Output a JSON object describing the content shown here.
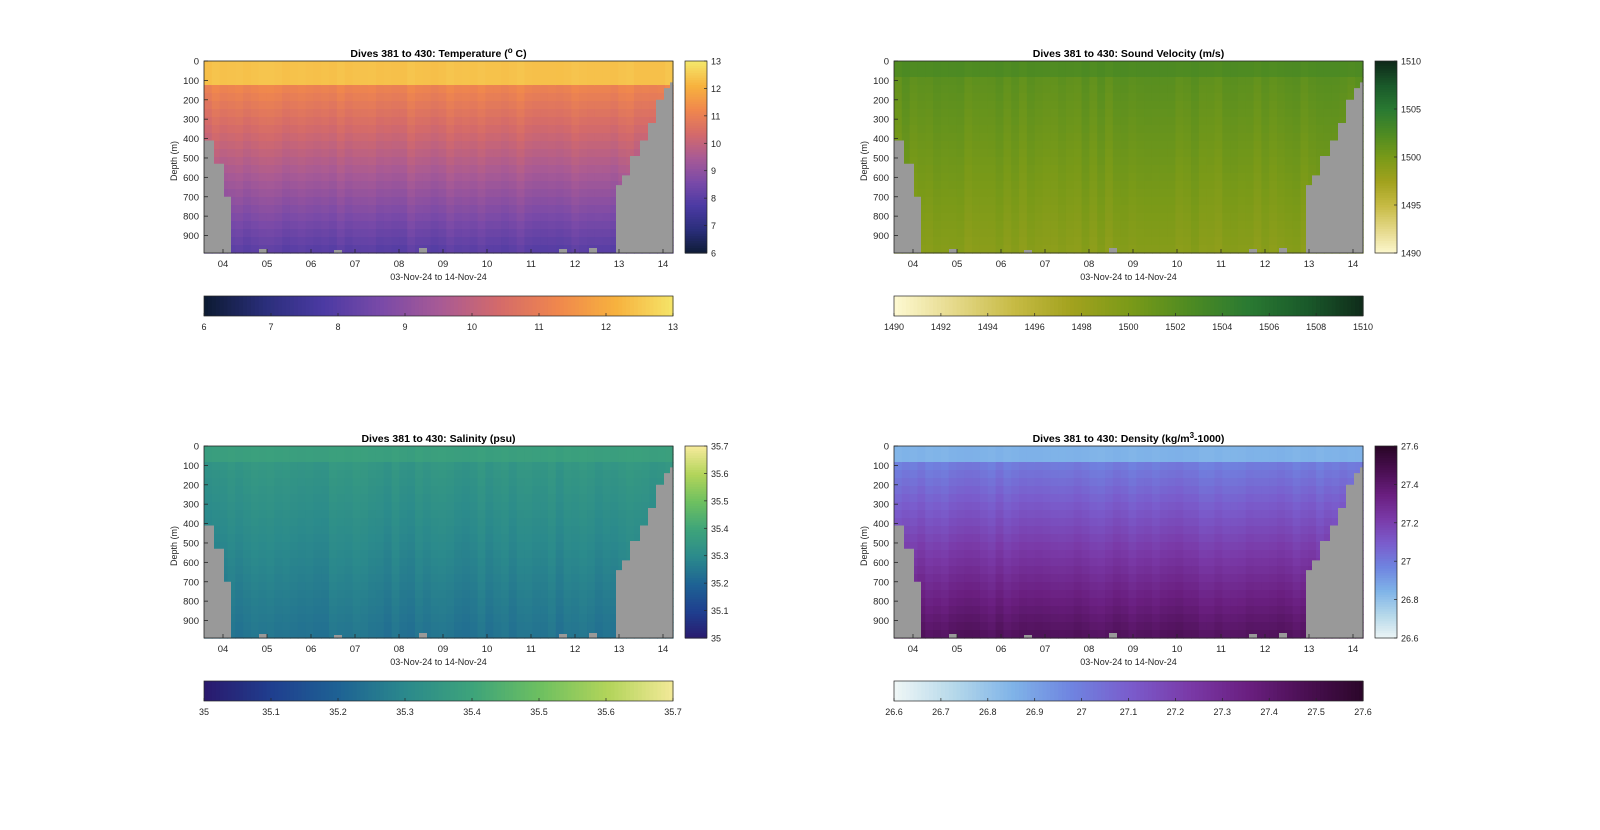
{
  "chart_data": [
    {
      "type": "heatmap",
      "title": "Dives 381 to 430: Temperature (°C)",
      "title_parts": {
        "pre": "Dives 381 to 430: Temperature (",
        "sup": "o",
        "post": " C)"
      },
      "xlabel": "03-Nov-24 to 14-Nov-24",
      "ylabel": "Depth (m)",
      "x_ticks": [
        "04",
        "05",
        "06",
        "07",
        "08",
        "09",
        "10",
        "11",
        "12",
        "13",
        "14"
      ],
      "y_ticks": [
        "0",
        "100",
        "200",
        "300",
        "400",
        "500",
        "600",
        "700",
        "800",
        "900"
      ],
      "ylim": [
        0,
        990
      ],
      "colorbar_right_ticks": [
        "6",
        "7",
        "8",
        "9",
        "10",
        "11",
        "12",
        "13"
      ],
      "colorbar_bottom_ticks": [
        "6",
        "7",
        "8",
        "9",
        "10",
        "11",
        "12",
        "13"
      ],
      "clim": [
        6,
        13
      ],
      "colormap": [
        "#0d1b34",
        "#2a2e7a",
        "#4b3aa3",
        "#7a4aa8",
        "#a85a95",
        "#d46a6a",
        "#f0874d",
        "#f7b23e",
        "#f5e66a"
      ],
      "surface_value": 12.4,
      "bottom_value": 8.0,
      "mixed_layer_m": 110
    },
    {
      "type": "heatmap",
      "title": "Dives 381 to 430: Sound Velocity (m/s)",
      "xlabel": "03-Nov-24 to 14-Nov-24",
      "ylabel": "Depth (m)",
      "x_ticks": [
        "04",
        "05",
        "06",
        "07",
        "08",
        "09",
        "10",
        "11",
        "12",
        "13",
        "14"
      ],
      "y_ticks": [
        "0",
        "100",
        "200",
        "300",
        "400",
        "500",
        "600",
        "700",
        "800",
        "900"
      ],
      "ylim": [
        0,
        990
      ],
      "colorbar_right_ticks": [
        "1490",
        "1495",
        "1500",
        "1505",
        "1510"
      ],
      "colorbar_bottom_ticks": [
        "1490",
        "1492",
        "1494",
        "1496",
        "1498",
        "1500",
        "1502",
        "1504",
        "1506",
        "1508",
        "1510"
      ],
      "clim": [
        1490,
        1510
      ],
      "colormap": [
        "#fdf8d0",
        "#e5d98a",
        "#c7bb45",
        "#a2a21e",
        "#7a9a18",
        "#4e8b22",
        "#2a7a32",
        "#1a5a2a",
        "#0f2a1a"
      ],
      "surface_value": 1502.5,
      "bottom_value": 1499.0,
      "mixed_layer_m": 100
    },
    {
      "type": "heatmap",
      "title": "Dives 381 to 430: Salinity (psu)",
      "xlabel": "03-Nov-24 to 14-Nov-24",
      "ylabel": "Depth (m)",
      "x_ticks": [
        "04",
        "05",
        "06",
        "07",
        "08",
        "09",
        "10",
        "11",
        "12",
        "13",
        "14"
      ],
      "y_ticks": [
        "0",
        "100",
        "200",
        "300",
        "400",
        "500",
        "600",
        "700",
        "800",
        "900"
      ],
      "ylim": [
        0,
        990
      ],
      "colorbar_right_ticks": [
        "35",
        "35.1",
        "35.2",
        "35.3",
        "35.4",
        "35.5",
        "35.6",
        "35.7"
      ],
      "colorbar_bottom_ticks": [
        "35",
        "35.1",
        "35.2",
        "35.3",
        "35.4",
        "35.5",
        "35.6",
        "35.7"
      ],
      "clim": [
        35,
        35.7
      ],
      "colormap": [
        "#2a1a6e",
        "#1f3f8f",
        "#1e6394",
        "#2b8a8c",
        "#3ea47a",
        "#6ec060",
        "#b2d45a",
        "#f5ea9a"
      ],
      "surface_value": 35.38,
      "bottom_value": 35.24,
      "mixed_layer_m": 100
    },
    {
      "type": "heatmap",
      "title": "Dives 381 to 430: Density (kg/m³-1000)",
      "title_parts": {
        "pre": "Dives 381 to 430: Density (kg/m",
        "sup": "3",
        "post": "-1000)"
      },
      "xlabel": "03-Nov-24 to 14-Nov-24",
      "ylabel": "Depth (m)",
      "x_ticks": [
        "04",
        "05",
        "06",
        "07",
        "08",
        "09",
        "10",
        "11",
        "12",
        "13",
        "14"
      ],
      "y_ticks": [
        "0",
        "100",
        "200",
        "300",
        "400",
        "500",
        "600",
        "700",
        "800",
        "900"
      ],
      "ylim": [
        0,
        990
      ],
      "colorbar_right_ticks": [
        "26.6",
        "26.8",
        "27",
        "27.2",
        "27.4",
        "27.6"
      ],
      "colorbar_bottom_ticks": [
        "26.6",
        "26.7",
        "26.8",
        "26.9",
        "27",
        "27.1",
        "27.2",
        "27.3",
        "27.4",
        "27.5",
        "27.6"
      ],
      "clim": [
        26.6,
        27.6
      ],
      "colormap": [
        "#eef6f6",
        "#b5d8ea",
        "#7fb3e8",
        "#6f84e0",
        "#7a5ccc",
        "#7a3aa8",
        "#6a1f80",
        "#4a0f52",
        "#2a0628"
      ],
      "surface_value": 26.85,
      "bottom_value": 27.45,
      "mixed_layer_m": 100
    }
  ],
  "colors": {
    "land": "#999999",
    "axis": "#262626",
    "background": "#ffffff"
  }
}
